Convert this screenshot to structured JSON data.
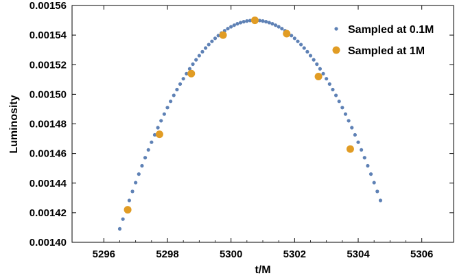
{
  "chart_data": {
    "type": "scatter",
    "title": "",
    "xlabel": "t/M",
    "ylabel": "Luminosity",
    "xlim": [
      5295,
      5307
    ],
    "ylim": [
      0.0014,
      0.00156
    ],
    "xticks": [
      "5296",
      "5298",
      "5300",
      "5302",
      "5304",
      "5306"
    ],
    "yticks": [
      "0.00140",
      "0.00142",
      "0.00144",
      "0.00146",
      "0.00148",
      "0.00150",
      "0.00152",
      "0.00154",
      "0.00156"
    ],
    "grid": false,
    "legend_position": "top-right",
    "peak_model": {
      "t_peak": 5300.75,
      "l_peak": 0.00155,
      "curvature": 7.8e-06
    },
    "series": [
      {
        "name": "Sampled at 0.1M",
        "color": "#5e81b5",
        "marker": "small-dot",
        "x_start": 5296.5,
        "x_step": 0.1,
        "count": 83
      },
      {
        "name": "Sampled at 1M",
        "color": "#e19c24",
        "marker": "large-dot",
        "x": [
          5296.75,
          5297.75,
          5298.75,
          5299.75,
          5300.75,
          5301.75,
          5302.75,
          5303.75
        ],
        "y": [
          0.001422,
          0.001473,
          0.001514,
          0.00154,
          0.00155,
          0.001541,
          0.001512,
          0.001463
        ]
      }
    ]
  }
}
